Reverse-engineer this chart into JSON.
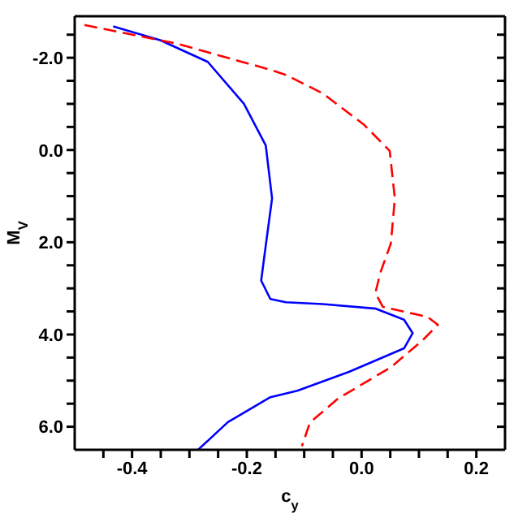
{
  "chart_data": {
    "type": "line",
    "xlabel": "c$_{y}$",
    "ylabel": "M$_{V}$",
    "xlim": [
      -0.5,
      0.25
    ],
    "ylim": [
      6.5,
      -2.9
    ],
    "xticks": [
      {
        "value": -0.45,
        "label": null
      },
      {
        "value": -0.4,
        "label": "-0.4"
      },
      {
        "value": -0.35,
        "label": null
      },
      {
        "value": -0.3,
        "label": null
      },
      {
        "value": -0.25,
        "label": null
      },
      {
        "value": -0.2,
        "label": "-0.2"
      },
      {
        "value": -0.15,
        "label": null
      },
      {
        "value": -0.1,
        "label": null
      },
      {
        "value": -0.05,
        "label": null
      },
      {
        "value": 0,
        "label": "0.0"
      },
      {
        "value": 0.05,
        "label": null
      },
      {
        "value": 0.1,
        "label": null
      },
      {
        "value": 0.15,
        "label": null
      },
      {
        "value": 0.2,
        "label": "0.2"
      }
    ],
    "yticks": [
      {
        "value": -2.5,
        "label": null
      },
      {
        "value": -2,
        "label": "-2.0"
      },
      {
        "value": -1.5,
        "label": null
      },
      {
        "value": -1,
        "label": null
      },
      {
        "value": -0.5,
        "label": null
      },
      {
        "value": 0,
        "label": "0.0"
      },
      {
        "value": 0.5,
        "label": null
      },
      {
        "value": 1,
        "label": null
      },
      {
        "value": 1.5,
        "label": null
      },
      {
        "value": 2,
        "label": "2.0"
      },
      {
        "value": 2.5,
        "label": null
      },
      {
        "value": 3,
        "label": null
      },
      {
        "value": 3.5,
        "label": null
      },
      {
        "value": 4,
        "label": "4.0"
      },
      {
        "value": 4.5,
        "label": null
      },
      {
        "value": 5,
        "label": null
      },
      {
        "value": 5.5,
        "label": null
      },
      {
        "value": 6,
        "label": "6.0"
      }
    ],
    "marker": "none",
    "series": [
      {
        "color": "#0000ff",
        "line_style": "solid",
        "x": [
          -0.433,
          -0.351,
          -0.268,
          -0.205,
          -0.167,
          -0.156,
          -0.167,
          -0.175,
          -0.159,
          -0.132,
          -0.068,
          0.025,
          0.074,
          0.089,
          0.074,
          -0.022,
          -0.112,
          -0.159,
          -0.233,
          -0.285
        ],
        "values": [
          -2.68,
          -2.38,
          -1.91,
          -1.0,
          -0.1,
          1.05,
          2.07,
          2.83,
          3.23,
          3.3,
          3.34,
          3.44,
          3.68,
          3.97,
          4.3,
          4.81,
          5.22,
          5.36,
          5.9,
          6.5
        ]
      },
      {
        "color": "#ff0000",
        "line_style": "dashed",
        "x": [
          -0.483,
          -0.323,
          -0.159,
          -0.132,
          -0.068,
          0.005,
          0.049,
          0.058,
          0.051,
          0.033,
          0.024,
          0.037,
          0.115,
          0.133,
          0.106,
          0.051,
          -0.041,
          -0.09,
          -0.104
        ],
        "values": [
          -2.71,
          -2.31,
          -1.74,
          -1.63,
          -1.23,
          -0.54,
          0.02,
          1.05,
          2.03,
          2.65,
          3.1,
          3.4,
          3.62,
          3.79,
          4.13,
          4.71,
          5.39,
          5.91,
          6.42
        ]
      }
    ]
  }
}
